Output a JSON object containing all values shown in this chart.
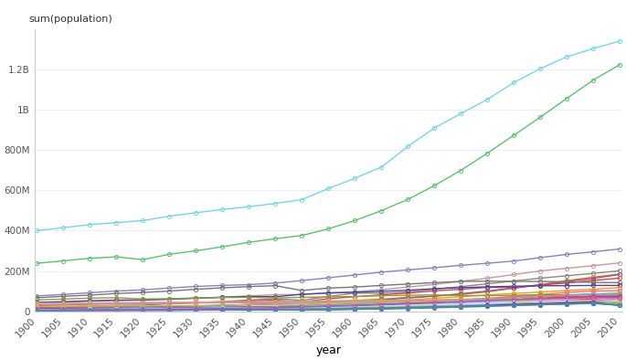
{
  "xlabel": "year",
  "ylabel": "sum(population)",
  "years": [
    1900,
    1905,
    1910,
    1915,
    1920,
    1925,
    1930,
    1935,
    1940,
    1945,
    1950,
    1955,
    1960,
    1965,
    1970,
    1975,
    1980,
    1985,
    1990,
    1995,
    2000,
    2005,
    2010
  ],
  "countries": {
    "China": {
      "color": "#74d7e8",
      "data": [
        400000000.0,
        415000000.0,
        430000000.0,
        440000000.0,
        450000000.0,
        472000000.0,
        489000000.0,
        505000000.0,
        519000000.0,
        535000000.0,
        554000000.0,
        609000000.0,
        660000000.0,
        715000000.0,
        818000000.0,
        909000000.0,
        981000000.0,
        1051000000.0,
        1135000000.0,
        1204000000.0,
        1263000000.0,
        1304000000.0,
        1341000000.0
      ]
    },
    "India": {
      "color": "#59c46e",
      "data": [
        238000000.0,
        250000000.0,
        263000000.0,
        270000000.0,
        256000000.0,
        283000000.0,
        300000000.0,
        320000000.0,
        342000000.0,
        360000000.0,
        376000000.0,
        409000000.0,
        450000000.0,
        499000000.0,
        555000000.0,
        623000000.0,
        699000000.0,
        784000000.0,
        873000000.0,
        963000000.0,
        1056000000.0,
        1147000000.0,
        1224000000.0
      ]
    },
    "United States": {
      "color": "#8b81c3",
      "data": [
        76000000.0,
        83000000.0,
        92000000.0,
        100000000.0,
        106000000.0,
        115000000.0,
        123000000.0,
        128000000.0,
        132000000.0,
        140000000.0,
        152000000.0,
        166000000.0,
        180000000.0,
        194000000.0,
        205000000.0,
        216000000.0,
        228000000.0,
        238000000.0,
        249000000.0,
        266000000.0,
        282000000.0,
        295000000.0,
        309000000.0
      ]
    },
    "Indonesia": {
      "color": "#c49a9a",
      "data": [
        40000000.0,
        44000000.0,
        49000000.0,
        53000000.0,
        55000000.0,
        59000000.0,
        64000000.0,
        70000000.0,
        76000000.0,
        82000000.0,
        83000000.0,
        92000000.0,
        97000000.0,
        107000000.0,
        120000000.0,
        133000000.0,
        148000000.0,
        164000000.0,
        182000000.0,
        200000000.0,
        213000000.0,
        226000000.0,
        240000000.0
      ]
    },
    "Brazil": {
      "color": "#888888",
      "data": [
        17000000.0,
        21000000.0,
        25000000.0,
        29000000.0,
        30000000.0,
        37000000.0,
        42000000.0,
        48000000.0,
        55000000.0,
        62000000.0,
        54000000.0,
        73000000.0,
        90000000.0,
        89000000.0,
        96000000.0,
        109000000.0,
        122000000.0,
        136000000.0,
        150000000.0,
        164000000.0,
        176000000.0,
        188000000.0,
        201000000.0
      ]
    },
    "Pakistan": {
      "color": "#ff7400",
      "data": [
        16000000.0,
        17000000.0,
        19000000.0,
        20000000.0,
        21000000.0,
        23000000.0,
        26000000.0,
        29000000.0,
        33000000.0,
        37000000.0,
        40000000.0,
        46000000.0,
        54000000.0,
        60000000.0,
        69000000.0,
        75000000.0,
        83000000.0,
        96000000.0,
        115000000.0,
        132000000.0,
        152000000.0,
        169000000.0,
        185000000.0
      ]
    },
    "Nigeria": {
      "color": "#7b5ea7",
      "data": [
        16000000.0,
        18000000.0,
        19000000.0,
        21000000.0,
        22000000.0,
        24000000.0,
        26000000.0,
        29000000.0,
        33000000.0,
        36000000.0,
        37000000.0,
        43000000.0,
        49000000.0,
        56000000.0,
        65000000.0,
        75000000.0,
        87000000.0,
        100000000.0,
        115000000.0,
        130000000.0,
        147000000.0,
        163000000.0,
        182000000.0
      ]
    },
    "Bangladesh": {
      "color": "#e04040",
      "data": [
        28000000.0,
        31000000.0,
        35000000.0,
        37000000.0,
        38000000.0,
        39000000.0,
        42000000.0,
        46000000.0,
        51000000.0,
        55000000.0,
        46000000.0,
        62000000.0,
        72000000.0,
        81000000.0,
        90000000.0,
        101000000.0,
        109000000.0,
        118000000.0,
        118000000.0,
        130000000.0,
        140000000.0,
        153000000.0,
        164000000.0
      ]
    },
    "Russia": {
      "color": "#777777",
      "data": [
        67000000.0,
        74000000.0,
        80000000.0,
        88000000.0,
        93000000.0,
        100000000.0,
        109000000.0,
        116000000.0,
        122000000.0,
        127000000.0,
        103000000.0,
        115000000.0,
        120000000.0,
        128000000.0,
        135000000.0,
        142000000.0,
        148000000.0,
        149000000.0,
        148000000.0,
        148000000.0,
        146000000.0,
        143000000.0,
        142000000.0
      ]
    },
    "Japan": {
      "color": "#4444aa",
      "data": [
        44000000.0,
        47000000.0,
        52000000.0,
        55000000.0,
        56000000.0,
        60000000.0,
        65000000.0,
        69000000.0,
        73000000.0,
        72000000.0,
        84000000.0,
        90000000.0,
        94000000.0,
        99000000.0,
        104000000.0,
        112000000.0,
        117000000.0,
        121000000.0,
        124000000.0,
        126000000.0,
        127000000.0,
        128000000.0,
        128000000.0
      ]
    },
    "Mexico": {
      "color": "#ff9900",
      "data": [
        14000000.0,
        15000000.0,
        15000000.0,
        15000000.0,
        15000000.0,
        16000000.0,
        17000000.0,
        19000000.0,
        22000000.0,
        24000000.0,
        29000000.0,
        32000000.0,
        38000000.0,
        46000000.0,
        55000000.0,
        64000000.0,
        72000000.0,
        81000000.0,
        88000000.0,
        95000000.0,
        103000000.0,
        109000000.0,
        117000000.0
      ]
    },
    "Ethiopia": {
      "color": "#a0a0a0",
      "data": [
        11000000.0,
        12000000.0,
        13000000.0,
        14000000.0,
        15000000.0,
        15000000.0,
        17000000.0,
        18000000.0,
        20000000.0,
        22000000.0,
        22000000.0,
        25000000.0,
        29000000.0,
        34000000.0,
        38000000.0,
        44000000.0,
        51000000.0,
        60000000.0,
        71000000.0,
        80000000.0,
        67000000.0,
        77000000.0,
        87000000.0
      ]
    },
    "Philippines": {
      "color": "#ff6688",
      "data": [
        7000000.0,
        8000000.0,
        9000000.0,
        10000000.0,
        11000000.0,
        12000000.0,
        14000000.0,
        16000000.0,
        18000000.0,
        19000000.0,
        21000000.0,
        24000000.0,
        29000000.0,
        35000000.0,
        40000000.0,
        47000000.0,
        55000000.0,
        64000000.0,
        74000000.0,
        83000000.0,
        93000000.0,
        100000000.0,
        102000000.0
      ]
    },
    "Vietnam": {
      "color": "#44bbcc",
      "data": [
        14000000.0,
        15000000.0,
        16000000.0,
        17000000.0,
        17000000.0,
        18000000.0,
        20000000.0,
        22000000.0,
        24000000.0,
        24000000.0,
        28000000.0,
        32000000.0,
        36000000.0,
        42000000.0,
        47000000.0,
        54000000.0,
        59000000.0,
        63000000.0,
        68000000.0,
        76000000.0,
        81000000.0,
        86000000.0,
        90000000.0
      ]
    },
    "Germany": {
      "color": "#999933",
      "data": [
        56000000.0,
        60000000.0,
        65000000.0,
        67000000.0,
        61000000.0,
        62000000.0,
        66000000.0,
        68000000.0,
        69000000.0,
        66000000.0,
        69000000.0,
        71000000.0,
        73000000.0,
        77000000.0,
        79000000.0,
        81000000.0,
        78000000.0,
        77000000.0,
        79000000.0,
        82000000.0,
        82000000.0,
        82000000.0,
        82000000.0
      ]
    },
    "Egypt": {
      "color": "#cc9966",
      "data": [
        10000000.0,
        11000000.0,
        12000000.0,
        13000000.0,
        14000000.0,
        15000000.0,
        16000000.0,
        18000000.0,
        20000000.0,
        22000000.0,
        21000000.0,
        26000000.0,
        30000000.0,
        35000000.0,
        41000000.0,
        45000000.0,
        51000000.0,
        59000000.0,
        66000000.0,
        71000000.0,
        79000000.0,
        86000000.0,
        84000000.0
      ]
    },
    "Congo": {
      "color": "#66aaff",
      "data": [
        9000000.0,
        10000000.0,
        10000000.0,
        11000000.0,
        11000000.0,
        12000000.0,
        13000000.0,
        14000000.0,
        16000000.0,
        17000000.0,
        12000000.0,
        16000000.0,
        21000000.0,
        26000000.0,
        30000000.0,
        36000000.0,
        42000000.0,
        48000000.0,
        49000000.0,
        60000000.0,
        74000000.0,
        86000000.0,
        75000000.0
      ]
    },
    "Iran": {
      "color": "#cc6600",
      "data": [
        10000000.0,
        11000000.0,
        11000000.0,
        12000000.0,
        13000000.0,
        14000000.0,
        15000000.0,
        17000000.0,
        19000000.0,
        21000000.0,
        18000000.0,
        22000000.0,
        27000000.0,
        31000000.0,
        37000000.0,
        43000000.0,
        51000000.0,
        58000000.0,
        58000000.0,
        66000000.0,
        71000000.0,
        75000000.0,
        74000000.0
      ]
    },
    "Turkey": {
      "color": "#aa4488",
      "data": [
        13000000.0,
        14000000.0,
        15000000.0,
        16000000.0,
        13000000.0,
        15000000.0,
        17000000.0,
        18000000.0,
        21000000.0,
        22000000.0,
        21000000.0,
        24000000.0,
        28000000.0,
        33000000.0,
        38000000.0,
        44000000.0,
        49000000.0,
        54000000.0,
        57000000.0,
        62000000.0,
        67000000.0,
        72000000.0,
        73000000.0
      ]
    },
    "South Africa": {
      "color": "#886644",
      "data": [
        5000000.0,
        6000000.0,
        6000000.0,
        7000000.0,
        7000000.0,
        8000000.0,
        9000000.0,
        10000000.0,
        11000000.0,
        12000000.0,
        14000000.0,
        16000000.0,
        18000000.0,
        21000000.0,
        24000000.0,
        27000000.0,
        29000000.0,
        33000000.0,
        38000000.0,
        44000000.0,
        49000000.0,
        55000000.0,
        50000000.0
      ]
    },
    "France": {
      "color": "#aaaadd",
      "data": [
        39000000.0,
        39000000.0,
        40000000.0,
        40000000.0,
        39000000.0,
        40000000.0,
        42000000.0,
        43000000.0,
        42000000.0,
        40000000.0,
        42000000.0,
        44000000.0,
        46000000.0,
        49000000.0,
        51000000.0,
        53000000.0,
        55000000.0,
        57000000.0,
        59000000.0,
        61000000.0,
        61000000.0,
        63000000.0,
        65000000.0
      ]
    },
    "UK": {
      "color": "#ddaaaa",
      "data": [
        38000000.0,
        40000000.0,
        42000000.0,
        43000000.0,
        44000000.0,
        45000000.0,
        46000000.0,
        47000000.0,
        47000000.0,
        49000000.0,
        50000000.0,
        52000000.0,
        53000000.0,
        54000000.0,
        56000000.0,
        56000000.0,
        56000000.0,
        57000000.0,
        57000000.0,
        59000000.0,
        59000000.0,
        60000000.0,
        62000000.0
      ]
    },
    "Italy": {
      "color": "#dd8888",
      "data": [
        33000000.0,
        34000000.0,
        36000000.0,
        37000000.0,
        38000000.0,
        40000000.0,
        41000000.0,
        43000000.0,
        44000000.0,
        46000000.0,
        47000000.0,
        49000000.0,
        50000000.0,
        52000000.0,
        54000000.0,
        56000000.0,
        56000000.0,
        57000000.0,
        57000000.0,
        57000000.0,
        57000000.0,
        58000000.0,
        60000000.0
      ]
    },
    "Argentina": {
      "color": "#88ccaa",
      "data": [
        5000000.0,
        7000000.0,
        8000000.0,
        9000000.0,
        9000000.0,
        11000000.0,
        12000000.0,
        14000000.0,
        15000000.0,
        16000000.0,
        17000000.0,
        19000000.0,
        21000000.0,
        23000000.0,
        25000000.0,
        27000000.0,
        29000000.0,
        31000000.0,
        33000000.0,
        36000000.0,
        38000000.0,
        40000000.0,
        42000000.0
      ]
    },
    "Ukraine": {
      "color": "#bbbb44",
      "data": [
        24000000.0,
        25000000.0,
        26000000.0,
        27000000.0,
        26000000.0,
        27000000.0,
        28000000.0,
        30000000.0,
        32000000.0,
        33000000.0,
        37000000.0,
        40000000.0,
        43000000.0,
        47000000.0,
        49000000.0,
        50000000.0,
        51000000.0,
        51000000.0,
        52000000.0,
        50000000.0,
        49000000.0,
        47000000.0,
        46000000.0
      ]
    },
    "Kenya": {
      "color": "#ff4444",
      "data": [
        4000000.0,
        4000000.0,
        5000000.0,
        5000000.0,
        6000000.0,
        6000000.0,
        7000000.0,
        8000000.0,
        9000000.0,
        10000000.0,
        7000000.0,
        9000000.0,
        12000000.0,
        15000000.0,
        19000000.0,
        24000000.0,
        29000000.0,
        35000000.0,
        42000000.0,
        46000000.0,
        54000000.0,
        60000000.0,
        40000000.0
      ]
    },
    "Algeria": {
      "color": "#44ff88",
      "data": [
        4000000.0,
        5000000.0,
        5000000.0,
        6000000.0,
        6000000.0,
        7000000.0,
        7000000.0,
        8000000.0,
        9000000.0,
        10000000.0,
        9000000.0,
        10000000.0,
        12000000.0,
        14000000.0,
        17000000.0,
        20000000.0,
        23000000.0,
        27000000.0,
        31000000.0,
        36000000.0,
        42000000.0,
        44000000.0,
        36000000.0
      ]
    },
    "Tanzania": {
      "color": "#ff88ff",
      "data": [
        4000000.0,
        4000000.0,
        5000000.0,
        5000000.0,
        6000000.0,
        6000000.0,
        7000000.0,
        8000000.0,
        9000000.0,
        10000000.0,
        8000000.0,
        10000000.0,
        13000000.0,
        16000000.0,
        20000000.0,
        24000000.0,
        30000000.0,
        36000000.0,
        43000000.0,
        51000000.0,
        60000000.0,
        68000000.0,
        45000000.0
      ]
    },
    "Myanmar": {
      "color": "#88ffff",
      "data": [
        8000000.0,
        9000000.0,
        10000000.0,
        11000000.0,
        12000000.0,
        13000000.0,
        14000000.0,
        16000000.0,
        18000000.0,
        19000000.0,
        18000000.0,
        21000000.0,
        24000000.0,
        27000000.0,
        30000000.0,
        33000000.0,
        36000000.0,
        40000000.0,
        44000000.0,
        47000000.0,
        51000000.0,
        53000000.0,
        48000000.0
      ]
    },
    "Sudan": {
      "color": "#ccaa44",
      "data": [
        4000000.0,
        4000000.0,
        5000000.0,
        5000000.0,
        6000000.0,
        6000000.0,
        7000000.0,
        7000000.0,
        8000000.0,
        9000000.0,
        9000000.0,
        11000000.0,
        13000000.0,
        15000000.0,
        18000000.0,
        21000000.0,
        25000000.0,
        30000000.0,
        35000000.0,
        40000000.0,
        45000000.0,
        51000000.0,
        43000000.0
      ]
    },
    "Morocco": {
      "color": "#aa6633",
      "data": [
        4000000.0,
        5000000.0,
        5000000.0,
        6000000.0,
        6000000.0,
        7000000.0,
        8000000.0,
        8000000.0,
        9000000.0,
        10000000.0,
        9000000.0,
        11000000.0,
        13000000.0,
        16000000.0,
        19000000.0,
        22000000.0,
        25000000.0,
        28000000.0,
        31000000.0,
        34000000.0,
        37000000.0,
        40000000.0,
        32000000.0
      ]
    },
    "Uzbekistan": {
      "color": "#6633aa",
      "data": [
        4000000.0,
        4000000.0,
        5000000.0,
        5000000.0,
        5000000.0,
        5000000.0,
        6000000.0,
        7000000.0,
        7000000.0,
        8000000.0,
        7000000.0,
        8000000.0,
        10000000.0,
        12000000.0,
        15000000.0,
        19000000.0,
        23000000.0,
        28000000.0,
        33000000.0,
        36000000.0,
        41000000.0,
        45000000.0,
        28000000.0
      ]
    },
    "Peru": {
      "color": "#33aa66",
      "data": [
        4000000.0,
        4000000.0,
        5000000.0,
        5000000.0,
        5000000.0,
        6000000.0,
        7000000.0,
        8000000.0,
        8000000.0,
        9000000.0,
        8000000.0,
        10000000.0,
        12000000.0,
        14000000.0,
        17000000.0,
        20000000.0,
        23000000.0,
        26000000.0,
        29000000.0,
        32000000.0,
        35000000.0,
        38000000.0,
        30000000.0
      ]
    },
    "Thailand": {
      "color": "#cc44cc",
      "data": [
        6000000.0,
        7000000.0,
        8000000.0,
        9000000.0,
        10000000.0,
        11000000.0,
        12000000.0,
        14000000.0,
        16000000.0,
        18000000.0,
        20000000.0,
        24000000.0,
        27000000.0,
        32000000.0,
        37000000.0,
        42000000.0,
        47000000.0,
        53000000.0,
        58000000.0,
        62000000.0,
        65000000.0,
        67000000.0,
        68000000.0
      ]
    },
    "Venezuela": {
      "color": "#4488cc",
      "data": [
        3000000.0,
        3000000.0,
        3000000.0,
        4000000.0,
        4000000.0,
        4000000.0,
        5000000.0,
        6000000.0,
        7000000.0,
        8000000.0,
        5000000.0,
        7000000.0,
        9000000.0,
        11000000.0,
        14000000.0,
        17000000.0,
        20000000.0,
        24000000.0,
        28000000.0,
        32000000.0,
        36000000.0,
        40000000.0,
        29000000.0
      ]
    }
  },
  "ylim": [
    0,
    1400000000
  ],
  "yticks": [
    0,
    200000000,
    400000000,
    600000000,
    800000000,
    1000000000,
    1200000000
  ],
  "ytick_labels": [
    "0",
    "200M",
    "400M",
    "600M",
    "800M",
    "1B",
    "1.2B"
  ],
  "background_color": "#ffffff",
  "marker": "o",
  "marker_size": 3,
  "linewidth": 1.0,
  "ylabel_fontsize": 8,
  "xlabel_fontsize": 9,
  "tick_fontsize": 7.5,
  "spine_color": "#cccccc"
}
